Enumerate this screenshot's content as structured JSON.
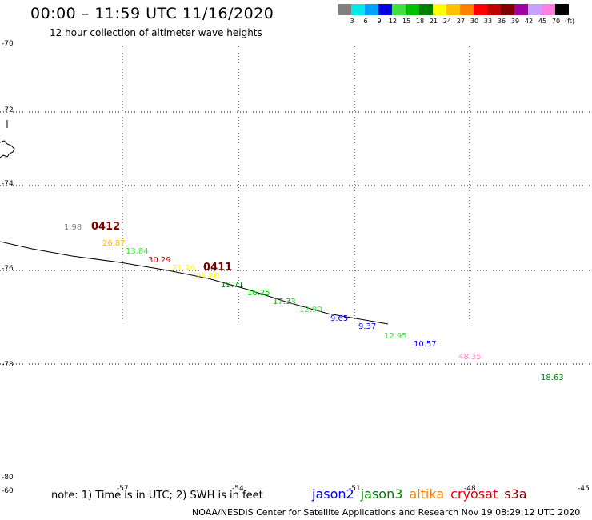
{
  "header": {
    "title": "00:00 – 11:59 UTC 11/16/2020",
    "subtitle": "12 hour collection of altimeter wave heights"
  },
  "colorbar": {
    "colors": [
      "#808080",
      "#00e8e8",
      "#00a0ff",
      "#0000e0",
      "#40e040",
      "#00c000",
      "#008000",
      "#ffff00",
      "#ffc000",
      "#ff8000",
      "#ff0000",
      "#c00000",
      "#800000",
      "#a000a0",
      "#c8a0ff",
      "#ff80e0",
      "#000000"
    ],
    "labels": [
      "3",
      "6",
      "9",
      "12",
      "15",
      "18",
      "21",
      "24",
      "27",
      "30",
      "33",
      "36",
      "39",
      "42",
      "45",
      "70",
      "(ft)"
    ]
  },
  "map": {
    "lat_labels": [
      "-70",
      "-72",
      "-74",
      "-76",
      "-78",
      "-80"
    ],
    "lon_labels": [
      "-60",
      "-57",
      "-54",
      "-51",
      "-48",
      "-45"
    ],
    "pass_labels": [
      "0412",
      "0411"
    ],
    "wave_heights": [
      {
        "value": "1.98",
        "color": "#808080"
      },
      {
        "value": "26.87",
        "color": "#ffc000"
      },
      {
        "value": "13.84",
        "color": "#40e040"
      },
      {
        "value": "30.29",
        "color": "#c00000"
      },
      {
        "value": "21.16",
        "color": "#ffff00"
      },
      {
        "value": "21.80",
        "color": "#ffff00"
      },
      {
        "value": "19.71",
        "color": "#008000"
      },
      {
        "value": "16.25",
        "color": "#00c000"
      },
      {
        "value": "17.33",
        "color": "#00c000"
      },
      {
        "value": "12.90",
        "color": "#40e040"
      },
      {
        "value": "9.65",
        "color": "#0000e0"
      },
      {
        "value": "9.37",
        "color": "#0000e0"
      },
      {
        "value": "12.95",
        "color": "#40e040"
      },
      {
        "value": "10.57",
        "color": "#0000e0"
      },
      {
        "value": "48.35",
        "color": "#ff80e0"
      },
      {
        "value": "18.63",
        "color": "#008000"
      }
    ]
  },
  "footer": {
    "note": "note: 1) Time is in UTC; 2) SWH is in feet",
    "satellites": [
      {
        "name": "jason2",
        "color": "#0000e0"
      },
      {
        "name": "jason3",
        "color": "#008000"
      },
      {
        "name": "altika",
        "color": "#ff8000"
      },
      {
        "name": "cryosat",
        "color": "#e00000"
      },
      {
        "name": "s3a",
        "color": "#800000"
      }
    ],
    "credit": "NOAA/NESDIS Center for Satellite Applications and Research    Nov 19 08:29:12 UTC 2020"
  }
}
